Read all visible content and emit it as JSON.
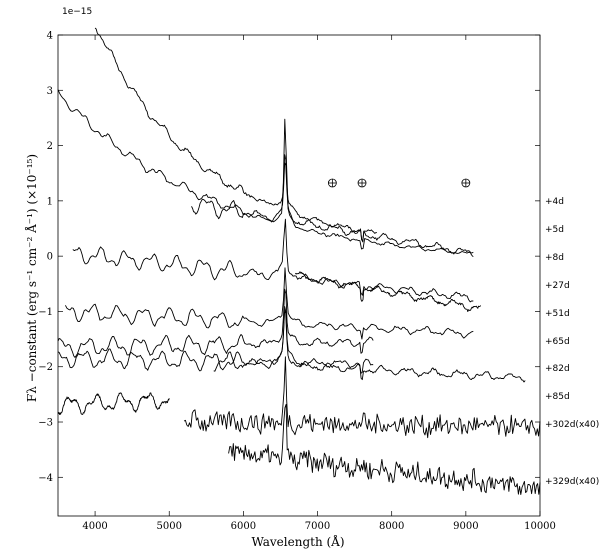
{
  "chart_data": {
    "type": "line",
    "xlabel": "Wavelength (Å)",
    "ylabel": "Fλ −constant (erg s⁻¹ cm⁻² Å⁻¹) (×10⁻¹⁵)",
    "y_exponent_label": "1e−15",
    "xlim": [
      3500,
      10000
    ],
    "ylim": [
      -4.7,
      4.0
    ],
    "x_ticks": [
      4000,
      5000,
      6000,
      7000,
      8000,
      9000,
      10000
    ],
    "y_ticks": [
      4,
      3,
      2,
      1,
      0,
      -1,
      -2,
      -3,
      -4
    ],
    "grid": false,
    "telluric_markers_x": [
      7200,
      7600,
      9000
    ],
    "series": [
      {
        "name": "+4d",
        "x_range": [
          4000,
          7800
        ],
        "start_y": 4.2,
        "end_y": 0.42,
        "features": "blue continuum, H-alpha emission"
      },
      {
        "name": "+5d",
        "x_range": [
          3500,
          9100
        ],
        "start_y": 2.95,
        "end_y": 0.05,
        "features": "blue continuum, strong H-alpha peak near 1.9"
      },
      {
        "name": "+8d",
        "x_range": [
          5300,
          9100
        ],
        "start_y": 0.95,
        "end_y": 0.05
      },
      {
        "name": "+27d",
        "x_range": [
          3700,
          9100
        ],
        "start_y": 0.05,
        "end_y": -0.75
      },
      {
        "name": "+51d",
        "x_range": [
          6700,
          9200
        ],
        "start_y": -0.35,
        "end_y": -0.95
      },
      {
        "name": "+65d",
        "x_range": [
          3600,
          9100
        ],
        "start_y": -1.0,
        "end_y": -1.4
      },
      {
        "name": "+82d",
        "x_range": [
          3500,
          7750
        ],
        "start_y": -1.65,
        "end_y": -1.55
      },
      {
        "name": "+85d",
        "x_range": [
          3500,
          7750
        ],
        "start_y": -1.85,
        "end_y": -1.95
      },
      {
        "name": "+302d(x40)",
        "x_range": [
          5200,
          10000
        ],
        "start_y": -2.98,
        "end_y": -3.1
      },
      {
        "name": "+329d(x40)",
        "x_range": [
          5800,
          10000
        ],
        "start_y": -3.55,
        "end_y": -4.2
      }
    ],
    "extra_segments": [
      {
        "x_range": [
          5600,
          9800
        ],
        "start_y": -1.9,
        "end_y": -2.2
      },
      {
        "x_range": [
          3500,
          5000
        ],
        "start_y": -2.7,
        "end_y": -2.6
      }
    ]
  }
}
